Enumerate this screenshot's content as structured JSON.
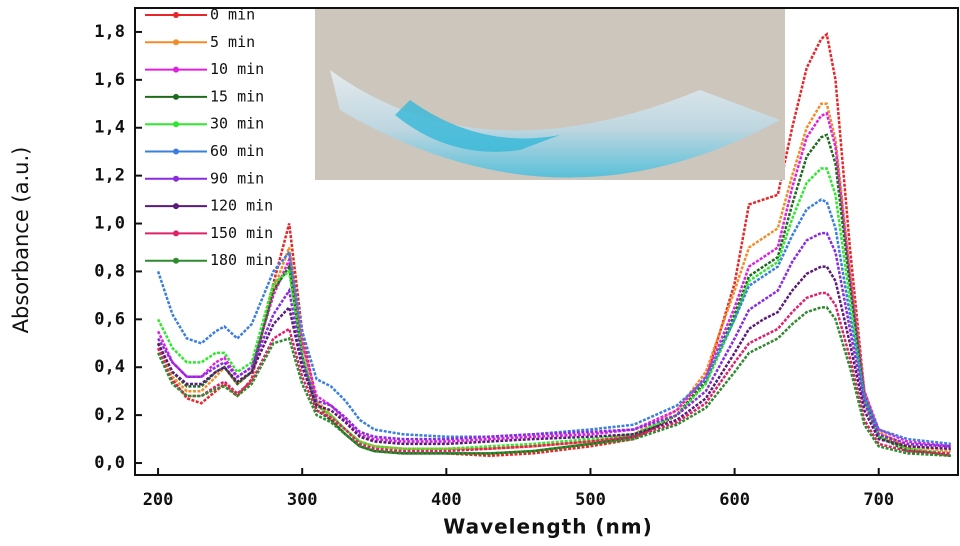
{
  "chart_data": {
    "type": "line",
    "xlabel": "Wavelength (nm)",
    "ylabel": "Absorbance (a.u.)",
    "x": [
      200,
      210,
      220,
      230,
      240,
      246,
      255,
      265,
      280,
      291,
      300,
      310,
      320,
      330,
      340,
      350,
      370,
      400,
      430,
      460,
      500,
      530,
      560,
      580,
      600,
      610,
      620,
      630,
      640,
      650,
      660,
      664,
      670,
      680,
      690,
      700,
      720,
      750
    ],
    "series": [
      {
        "name": "0 min",
        "color": "#e8262a",
        "values": [
          0.5,
          0.35,
          0.27,
          0.25,
          0.3,
          0.33,
          0.28,
          0.35,
          0.75,
          1.0,
          0.55,
          0.25,
          0.18,
          0.12,
          0.07,
          0.05,
          0.04,
          0.04,
          0.03,
          0.04,
          0.07,
          0.1,
          0.2,
          0.35,
          0.75,
          1.08,
          1.1,
          1.12,
          1.4,
          1.65,
          1.77,
          1.79,
          1.6,
          0.9,
          0.3,
          0.12,
          0.06,
          0.03
        ]
      },
      {
        "name": "5 min",
        "color": "#f28c28",
        "values": [
          0.48,
          0.36,
          0.3,
          0.3,
          0.36,
          0.4,
          0.33,
          0.38,
          0.72,
          0.9,
          0.5,
          0.26,
          0.2,
          0.14,
          0.09,
          0.07,
          0.06,
          0.06,
          0.06,
          0.07,
          0.09,
          0.12,
          0.22,
          0.38,
          0.72,
          0.9,
          0.94,
          0.98,
          1.2,
          1.4,
          1.5,
          1.5,
          1.35,
          0.8,
          0.3,
          0.13,
          0.07,
          0.05
        ]
      },
      {
        "name": "10 min",
        "color": "#e020e0",
        "values": [
          0.55,
          0.42,
          0.36,
          0.36,
          0.42,
          0.44,
          0.36,
          0.4,
          0.7,
          0.85,
          0.5,
          0.28,
          0.24,
          0.18,
          0.12,
          0.1,
          0.09,
          0.09,
          0.1,
          0.11,
          0.12,
          0.14,
          0.22,
          0.36,
          0.65,
          0.82,
          0.86,
          0.9,
          1.15,
          1.36,
          1.45,
          1.46,
          1.32,
          0.78,
          0.3,
          0.14,
          0.09,
          0.07
        ]
      },
      {
        "name": "15 min",
        "color": "#1e6b1e",
        "values": [
          0.5,
          0.38,
          0.32,
          0.32,
          0.38,
          0.4,
          0.33,
          0.38,
          0.72,
          0.82,
          0.45,
          0.22,
          0.18,
          0.12,
          0.07,
          0.05,
          0.04,
          0.04,
          0.04,
          0.05,
          0.08,
          0.11,
          0.2,
          0.34,
          0.62,
          0.78,
          0.82,
          0.86,
          1.08,
          1.28,
          1.36,
          1.37,
          1.25,
          0.74,
          0.28,
          0.11,
          0.05,
          0.03
        ]
      },
      {
        "name": "30 min",
        "color": "#2ee82e",
        "values": [
          0.6,
          0.48,
          0.42,
          0.42,
          0.46,
          0.46,
          0.38,
          0.42,
          0.75,
          0.8,
          0.45,
          0.24,
          0.2,
          0.14,
          0.09,
          0.07,
          0.06,
          0.06,
          0.07,
          0.08,
          0.1,
          0.12,
          0.2,
          0.33,
          0.6,
          0.76,
          0.8,
          0.84,
          1.02,
          1.17,
          1.23,
          1.23,
          1.12,
          0.68,
          0.26,
          0.11,
          0.06,
          0.04
        ]
      },
      {
        "name": "60 min",
        "color": "#3a7ee0",
        "values": [
          0.8,
          0.62,
          0.52,
          0.5,
          0.55,
          0.57,
          0.52,
          0.58,
          0.8,
          0.88,
          0.55,
          0.35,
          0.32,
          0.26,
          0.18,
          0.14,
          0.12,
          0.11,
          0.11,
          0.12,
          0.14,
          0.16,
          0.24,
          0.35,
          0.6,
          0.74,
          0.78,
          0.82,
          0.95,
          1.06,
          1.1,
          1.09,
          0.98,
          0.62,
          0.28,
          0.14,
          0.1,
          0.08
        ]
      },
      {
        "name": "90 min",
        "color": "#8a2be2",
        "values": [
          0.52,
          0.42,
          0.36,
          0.36,
          0.4,
          0.42,
          0.36,
          0.4,
          0.62,
          0.72,
          0.42,
          0.26,
          0.24,
          0.19,
          0.13,
          0.11,
          0.1,
          0.1,
          0.11,
          0.12,
          0.13,
          0.14,
          0.2,
          0.3,
          0.52,
          0.64,
          0.68,
          0.72,
          0.84,
          0.93,
          0.96,
          0.96,
          0.88,
          0.56,
          0.25,
          0.12,
          0.08,
          0.07
        ]
      },
      {
        "name": "120 min",
        "color": "#5a1a7a",
        "values": [
          0.5,
          0.38,
          0.33,
          0.33,
          0.38,
          0.4,
          0.34,
          0.38,
          0.58,
          0.65,
          0.4,
          0.24,
          0.22,
          0.17,
          0.11,
          0.09,
          0.08,
          0.08,
          0.09,
          0.1,
          0.11,
          0.12,
          0.18,
          0.27,
          0.46,
          0.56,
          0.6,
          0.63,
          0.72,
          0.79,
          0.82,
          0.82,
          0.76,
          0.5,
          0.22,
          0.1,
          0.07,
          0.06
        ]
      },
      {
        "name": "150 min",
        "color": "#e0206a",
        "values": [
          0.48,
          0.34,
          0.28,
          0.28,
          0.32,
          0.34,
          0.29,
          0.34,
          0.52,
          0.56,
          0.36,
          0.22,
          0.19,
          0.14,
          0.08,
          0.06,
          0.05,
          0.05,
          0.06,
          0.07,
          0.09,
          0.11,
          0.17,
          0.25,
          0.42,
          0.5,
          0.53,
          0.56,
          0.63,
          0.69,
          0.71,
          0.71,
          0.66,
          0.44,
          0.18,
          0.08,
          0.05,
          0.04
        ]
      },
      {
        "name": "180 min",
        "color": "#2e8b2e",
        "values": [
          0.46,
          0.33,
          0.28,
          0.28,
          0.31,
          0.32,
          0.28,
          0.33,
          0.5,
          0.52,
          0.33,
          0.2,
          0.17,
          0.12,
          0.07,
          0.05,
          0.04,
          0.04,
          0.04,
          0.05,
          0.08,
          0.1,
          0.16,
          0.23,
          0.38,
          0.46,
          0.49,
          0.52,
          0.58,
          0.63,
          0.65,
          0.65,
          0.6,
          0.4,
          0.16,
          0.07,
          0.04,
          0.03
        ]
      }
    ],
    "xlim": [
      184,
      755
    ],
    "xticks": [
      200,
      300,
      400,
      500,
      600,
      700
    ],
    "ylim": [
      -0.05,
      1.9
    ],
    "yticks": [
      {
        "value": 0,
        "label": "0,0"
      },
      {
        "value": 0.2,
        "label": "0,2"
      },
      {
        "value": 0.4,
        "label": "0,4"
      },
      {
        "value": 0.6,
        "label": "0,6"
      },
      {
        "value": 0.8,
        "label": "0,8"
      },
      {
        "value": 1.0,
        "label": "1,0"
      },
      {
        "value": 1.2,
        "label": "1,2"
      },
      {
        "value": 1.4,
        "label": "1,4"
      },
      {
        "value": 1.6,
        "label": "1,6"
      },
      {
        "value": 1.8,
        "label": "1,8"
      }
    ],
    "legend": "upper left"
  }
}
